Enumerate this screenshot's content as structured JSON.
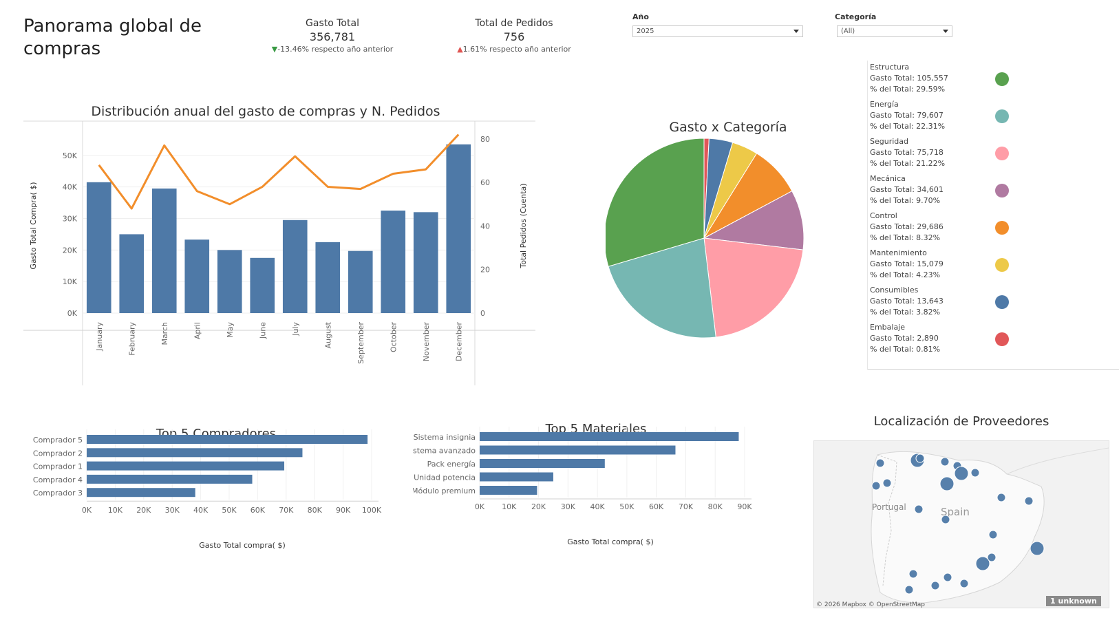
{
  "page": {
    "title_line1": "Panorama global de",
    "title_line2": "compras"
  },
  "kpis": {
    "gasto": {
      "label": "Gasto Total",
      "value": "356,781",
      "delta_symbol": "▼",
      "delta": "-13.46% respecto año anterior"
    },
    "pedidos": {
      "label": "Total de Pedidos",
      "value": "756",
      "delta_symbol": "▲",
      "delta": "1.61% respecto año anterior"
    }
  },
  "filters": {
    "year": {
      "label": "Año",
      "value": "2025"
    },
    "category": {
      "label": "Categoría",
      "value": "(All)"
    }
  },
  "colors": {
    "bar": "#4e79a7",
    "line": "#f28e2b",
    "kpi_down": "#3b9a45",
    "kpi_up": "#e05552"
  },
  "chart_data": [
    {
      "type": "bar",
      "title": "Distribución anual del gasto de compras y N. Pedidos",
      "categories": [
        "January",
        "February",
        "March",
        "April",
        "May",
        "June",
        "July",
        "August",
        "September",
        "October",
        "November",
        "December"
      ],
      "series": [
        {
          "name": "Gasto Total Compra( $)",
          "type": "bar",
          "values": [
            41500,
            25000,
            39500,
            23300,
            20000,
            17500,
            29500,
            22500,
            19700,
            32500,
            32000,
            53500
          ]
        },
        {
          "name": "Total Pedidos (Cuenta)",
          "type": "line",
          "values": [
            68,
            48,
            77,
            56,
            50,
            58,
            72,
            58,
            57,
            64,
            66,
            82
          ]
        }
      ],
      "ylabel": "Gasto Total Compra( $)",
      "y2label": "Total Pedidos (Cuenta)",
      "ylim": [
        0,
        60000
      ],
      "y2lim": [
        0,
        85
      ],
      "yticks": [
        "0K",
        "10K",
        "20K",
        "30K",
        "40K",
        "50K"
      ],
      "y2ticks": [
        "0",
        "20",
        "40",
        "60",
        "80"
      ]
    },
    {
      "type": "pie",
      "title": "Gasto x Categoría",
      "slices": [
        {
          "name": "Estructura",
          "value": 105557,
          "pct": "29.59%",
          "gasto_text": "Gasto Total: 105,557",
          "pct_text": "% del Total: 29.59%",
          "color": "#59a14f"
        },
        {
          "name": "Energía",
          "value": 79607,
          "pct": "22.31%",
          "gasto_text": "Gasto Total: 79,607",
          "pct_text": "% del Total: 22.31%",
          "color": "#76b7b2"
        },
        {
          "name": "Seguridad",
          "value": 75718,
          "pct": "21.22%",
          "gasto_text": "Gasto Total: 75,718",
          "pct_text": "% del Total: 21.22%",
          "color": "#ff9da7"
        },
        {
          "name": "Mecánica",
          "value": 34601,
          "pct": "9.70%",
          "gasto_text": "Gasto Total: 34,601",
          "pct_text": "% del Total: 9.70%",
          "color": "#b07aa1"
        },
        {
          "name": "Control",
          "value": 29686,
          "pct": "8.32%",
          "gasto_text": "Gasto Total: 29,686",
          "pct_text": "% del Total: 8.32%",
          "color": "#f28e2b"
        },
        {
          "name": "Mantenimiento",
          "value": 15079,
          "pct": "4.23%",
          "gasto_text": "Gasto Total: 15,079",
          "pct_text": "% del Total: 4.23%",
          "color": "#edc948"
        },
        {
          "name": "Consumibles",
          "value": 13643,
          "pct": "3.82%",
          "gasto_text": "Gasto Total: 13,643",
          "pct_text": "% del Total: 3.82%",
          "color": "#4e79a7"
        },
        {
          "name": "Embalaje",
          "value": 2890,
          "pct": "0.81%",
          "gasto_text": "Gasto Total: 2,890",
          "pct_text": "% del Total: 0.81%",
          "color": "#e15759"
        }
      ]
    },
    {
      "type": "bar",
      "orientation": "horizontal",
      "title": "Top 5 Compradores",
      "categories": [
        "Comprador 5",
        "Comprador 2",
        "Comprador 1",
        "Comprador 4",
        "Comprador 3"
      ],
      "values": [
        103500,
        79500,
        72800,
        61000,
        40000
      ],
      "xlabel": "Gasto Total compra( $)",
      "xlim": [
        0,
        105000
      ],
      "xticks": [
        "0K",
        "10K",
        "20K",
        "30K",
        "40K",
        "50K",
        "60K",
        "70K",
        "80K",
        "90K",
        "100K"
      ]
    },
    {
      "type": "bar",
      "orientation": "horizontal",
      "title": "Top 5 Materiales",
      "categories": [
        "Sistema insignia",
        "Sistema avanzado",
        "Pack energía",
        "Unidad potencia",
        "Módulo premium"
      ],
      "values": [
        88000,
        66500,
        42500,
        25000,
        19500
      ],
      "xlabel": "Gasto Total compra( $)",
      "xlim": [
        0,
        90000
      ],
      "xticks": [
        "0K",
        "10K",
        "20K",
        "30K",
        "40K",
        "50K",
        "60K",
        "70K",
        "80K",
        "90K"
      ]
    },
    {
      "type": "map",
      "title": "Localización de Proveedores",
      "labels": [
        "Portugal",
        "Spain"
      ],
      "point_sizes": [
        1,
        2,
        1,
        1,
        2,
        1,
        1,
        1,
        2,
        1,
        2,
        1,
        1,
        1,
        2,
        1,
        1,
        1,
        1,
        1,
        1,
        1,
        1
      ],
      "credit": "© 2026 Mapbox © OpenStreetMap",
      "unknown_badge": "1 unknown"
    }
  ]
}
